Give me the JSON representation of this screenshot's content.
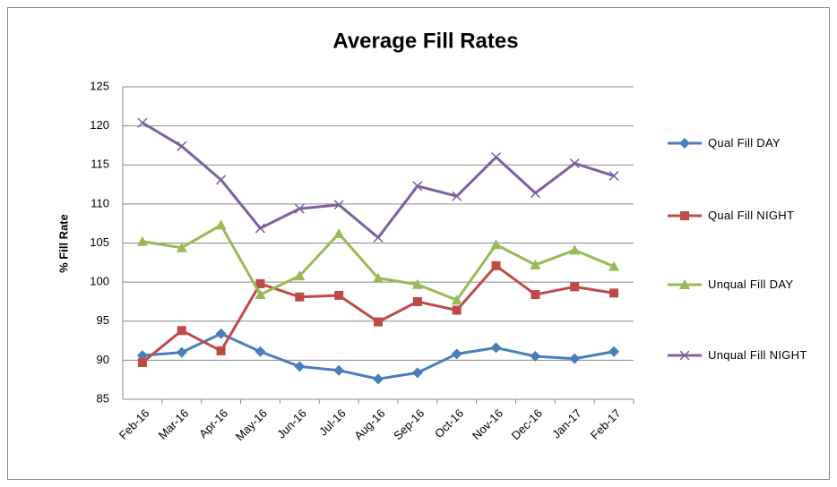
{
  "chart_data": {
    "type": "line",
    "title": "Average Fill Rates",
    "y_label": "% Fill Rate",
    "categories": [
      "Feb-16",
      "Mar-16",
      "Apr-16",
      "May-16",
      "Jun-16",
      "Jul-16",
      "Aug-16",
      "Sep-16",
      "Oct-16",
      "Nov-16",
      "Dec-16",
      "Jan-17",
      "Feb-17"
    ],
    "series": [
      {
        "name": "Qual Fill DAY",
        "color": "#4a7ebb",
        "marker": "diamond",
        "values": [
          90.6,
          91.0,
          93.4,
          91.1,
          89.2,
          88.7,
          87.6,
          88.4,
          90.8,
          91.6,
          90.5,
          90.2,
          91.1
        ]
      },
      {
        "name": "Qual Fill NIGHT",
        "color": "#be4b48",
        "marker": "square",
        "values": [
          89.7,
          93.8,
          91.2,
          99.8,
          98.1,
          98.3,
          94.9,
          97.5,
          96.4,
          102.1,
          98.4,
          99.4,
          98.6
        ]
      },
      {
        "name": "Unqual Fill DAY",
        "color": "#98b954",
        "marker": "triangle",
        "values": [
          105.2,
          104.4,
          107.3,
          98.4,
          100.8,
          106.2,
          100.5,
          99.7,
          97.7,
          104.8,
          102.2,
          104.1,
          102.0
        ]
      },
      {
        "name": "Unqual Fill NIGHT",
        "color": "#7d60a0",
        "marker": "x",
        "values": [
          120.4,
          117.4,
          113.1,
          106.9,
          109.4,
          109.9,
          105.7,
          112.3,
          111.0,
          116.0,
          111.4,
          115.2,
          113.6
        ]
      }
    ],
    "ylim": [
      85,
      125
    ],
    "yticks": [
      85,
      90,
      95,
      100,
      105,
      110,
      115,
      120,
      125
    ],
    "grid": true
  }
}
